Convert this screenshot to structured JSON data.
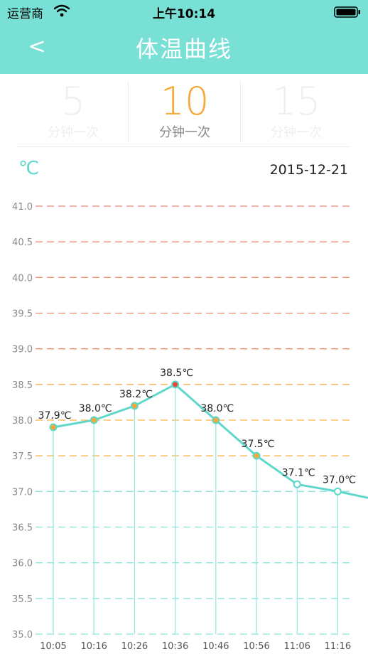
{
  "status_bar": {
    "carrier": "运营商",
    "time": "上午10:14"
  },
  "header": {
    "back_icon": "chevron-left-icon",
    "back_label": "<",
    "title": "体温曲线",
    "background": "#79e0d6"
  },
  "intervals": [
    {
      "value": "5",
      "label": "分钟一次",
      "active": false
    },
    {
      "value": "10",
      "label": "分钟一次",
      "active": true
    },
    {
      "value": "15",
      "label": "分钟一次",
      "active": false
    }
  ],
  "chart_meta": {
    "unit": "℃",
    "date": "2015-12-21"
  },
  "colors": {
    "accent": "#5fd7cb",
    "line": "#5fd7cb",
    "danger_grid": "#f08a70",
    "warning_grid": "#f6b24e",
    "normal_grid": "#8ee6dc",
    "active": "#f6a93a"
  },
  "chart_data": {
    "type": "line",
    "title": "",
    "xlabel": "",
    "ylabel": "",
    "ylim": [
      35.0,
      41.0
    ],
    "y_ticks": [
      "41.0",
      "40.5",
      "40.0",
      "39.5",
      "39.0",
      "38.5",
      "38.0",
      "37.5",
      "37.0",
      "36.5",
      "36.0",
      "35.5",
      "35.0"
    ],
    "grid": true,
    "grid_bands": [
      {
        "from": 39.0,
        "to": 41.0,
        "color": "#f08a70"
      },
      {
        "from": 37.5,
        "to": 38.5,
        "color": "#f6b24e"
      },
      {
        "from": 35.0,
        "to": 37.0,
        "color": "#8ee6dc"
      }
    ],
    "x": [
      "10:05",
      "10:16",
      "10:26",
      "10:36",
      "10:46",
      "10:56",
      "11:06",
      "11:16"
    ],
    "series": [
      {
        "values": [
          37.9,
          38.0,
          38.2,
          38.5,
          38.0,
          37.5,
          37.1,
          37.0
        ],
        "labels": [
          "37.9℃",
          "38.0℃",
          "38.2℃",
          "38.5℃",
          "38.0℃",
          "37.5℃",
          "37.1℃",
          "37.0℃"
        ]
      }
    ]
  }
}
